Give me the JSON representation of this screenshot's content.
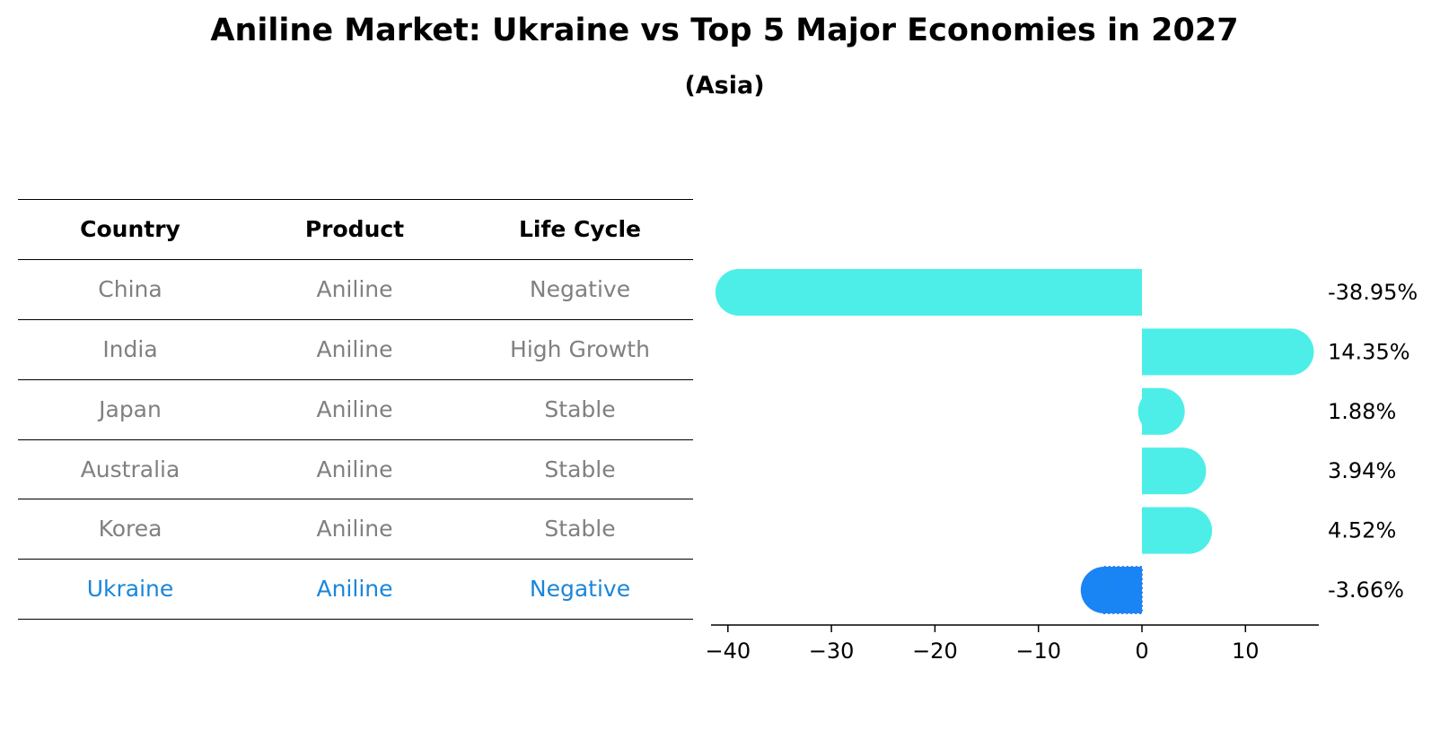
{
  "title": "Aniline Market: Ukraine vs Top 5 Major Economies in 2027",
  "subtitle": "(Asia)",
  "table": {
    "headers": [
      "Country",
      "Product",
      "Life Cycle"
    ],
    "rows": [
      {
        "country": "China",
        "product": "Aniline",
        "life_cycle": "Negative"
      },
      {
        "country": "India",
        "product": "Aniline",
        "life_cycle": "High Growth"
      },
      {
        "country": "Japan",
        "product": "Aniline",
        "life_cycle": "Stable"
      },
      {
        "country": "Australia",
        "product": "Aniline",
        "life_cycle": "Stable"
      },
      {
        "country": "Korea",
        "product": "Aniline",
        "life_cycle": "Stable"
      },
      {
        "country": "Ukraine",
        "product": "Aniline",
        "life_cycle": "Negative"
      }
    ]
  },
  "colors": {
    "bar": "#4deee8",
    "highlight_bar": "#1985f5",
    "row_text": "#808080",
    "highlight_text": "#1a86d9"
  },
  "chart_data": {
    "type": "bar",
    "orientation": "horizontal",
    "categories": [
      "China",
      "India",
      "Japan",
      "Australia",
      "Korea",
      "Ukraine"
    ],
    "values": [
      -38.95,
      14.35,
      1.88,
      3.94,
      4.52,
      -3.66
    ],
    "value_labels": [
      "-38.95%",
      "14.35%",
      "1.88%",
      "3.94%",
      "4.52%",
      "-3.66%"
    ],
    "highlight": "Ukraine",
    "xticks": [
      -40,
      -30,
      -20,
      -10,
      0,
      10
    ],
    "xtick_labels": [
      "−40",
      "−30",
      "−20",
      "−10",
      "0",
      "10"
    ],
    "xlim": [
      -41,
      17
    ],
    "title": "Aniline Market: Ukraine vs Top 5 Major Economies in 2027",
    "subtitle": "(Asia)"
  }
}
